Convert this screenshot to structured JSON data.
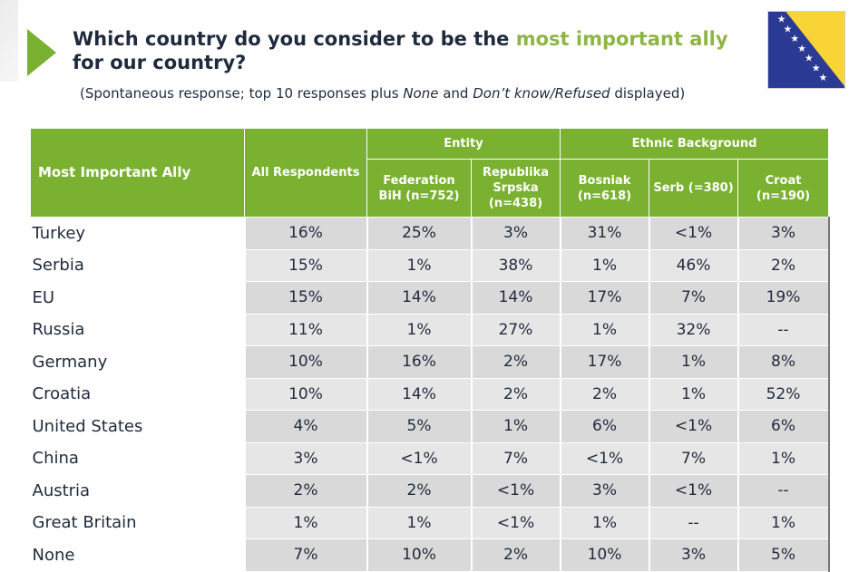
{
  "title": {
    "part1": "Which country do you consider to be the ",
    "highlight": "most important ally",
    "part2": " for our country?"
  },
  "subtitle": {
    "a": "(Spontaneous response; top 10 responses plus ",
    "b": "None",
    "c": " and ",
    "d": "Don’t know/Refused",
    "e": " displayed)"
  },
  "colors": {
    "accent": "#7ab130",
    "highlight": "#8db544",
    "flag_blue": "#2b3a94",
    "flag_yellow": "#f8d436"
  },
  "table": {
    "row_header": "Most Important Ally",
    "all_header": "All Respondents",
    "group_entity": "Entity",
    "group_ethnic": "Ethnic Background",
    "columns": [
      "Federation BiH (n=752)",
      "Republika Srpska (n=438)",
      "Bosniak (n=618)",
      "Serb (=380)",
      "Croat (n=190)"
    ],
    "rows": [
      {
        "label": "Turkey",
        "values": [
          "16%",
          "25%",
          "3%",
          "31%",
          "<1%",
          "3%"
        ]
      },
      {
        "label": "Serbia",
        "values": [
          "15%",
          "1%",
          "38%",
          "1%",
          "46%",
          "2%"
        ]
      },
      {
        "label": "EU",
        "values": [
          "15%",
          "14%",
          "14%",
          "17%",
          "7%",
          "19%"
        ]
      },
      {
        "label": "Russia",
        "values": [
          "11%",
          "1%",
          "27%",
          "1%",
          "32%",
          "--"
        ]
      },
      {
        "label": "Germany",
        "values": [
          "10%",
          "16%",
          "2%",
          "17%",
          "1%",
          "8%"
        ]
      },
      {
        "label": "Croatia",
        "values": [
          "10%",
          "14%",
          "2%",
          "2%",
          "1%",
          "52%"
        ]
      },
      {
        "label": "United States",
        "values": [
          "4%",
          "5%",
          "1%",
          "6%",
          "<1%",
          "6%"
        ]
      },
      {
        "label": "China",
        "values": [
          "3%",
          "<1%",
          "7%",
          "<1%",
          "7%",
          "1%"
        ]
      },
      {
        "label": "Austria",
        "values": [
          "2%",
          "2%",
          "<1%",
          "3%",
          "<1%",
          "--"
        ]
      },
      {
        "label": "Great Britain",
        "values": [
          "1%",
          "1%",
          "<1%",
          "1%",
          "--",
          "1%"
        ]
      },
      {
        "label": "None",
        "values": [
          "7%",
          "10%",
          "2%",
          "10%",
          "3%",
          "5%"
        ]
      }
    ]
  }
}
